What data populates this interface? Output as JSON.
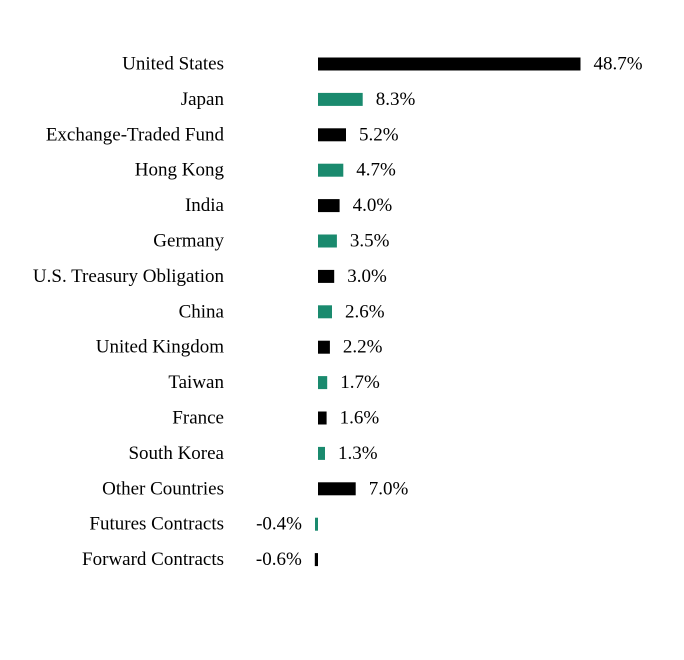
{
  "chart_data": {
    "type": "bar",
    "orientation": "horizontal",
    "categories": [
      "United States",
      "Japan",
      "Exchange-Traded Fund",
      "Hong Kong",
      "India",
      "Germany",
      "U.S. Treasury Obligation",
      "China",
      "United Kingdom",
      "Taiwan",
      "France",
      "South Korea",
      "Other Countries",
      "Futures Contracts",
      "Forward Contracts"
    ],
    "values": [
      48.7,
      8.3,
      5.2,
      4.7,
      4.0,
      3.5,
      3.0,
      2.6,
      2.2,
      1.7,
      1.6,
      1.3,
      7.0,
      -0.4,
      -0.6
    ],
    "value_labels": [
      "48.7%",
      "8.3%",
      "5.2%",
      "4.7%",
      "4.0%",
      "3.5%",
      "3.0%",
      "2.6%",
      "2.2%",
      "1.7%",
      "1.6%",
      "1.3%",
      "7.0%",
      "-0.4%",
      "-0.6%"
    ],
    "bar_colors": [
      "#000000",
      "#1a8a6e"
    ],
    "title": "",
    "xlabel": "",
    "ylabel": "",
    "grid": false,
    "legend": "none"
  }
}
